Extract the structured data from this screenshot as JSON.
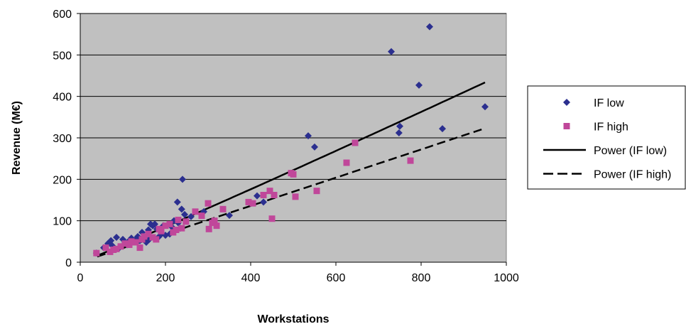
{
  "chart_data": {
    "type": "scatter",
    "title": "",
    "xlabel": "Workstations",
    "ylabel": "Revenue (M€)",
    "xlim": [
      0,
      1000
    ],
    "ylim": [
      0,
      600
    ],
    "xticks": [
      "0",
      "200",
      "400",
      "600",
      "800",
      "1000"
    ],
    "yticks": [
      "0",
      "100",
      "200",
      "300",
      "400",
      "500",
      "600"
    ],
    "xtick_values": [
      0,
      200,
      400,
      600,
      800,
      1000
    ],
    "ytick_values": [
      0,
      100,
      200,
      300,
      400,
      500,
      600
    ],
    "grid": "horizontal",
    "plot_background": "#c0c0c0",
    "legend_position": "right",
    "series": [
      {
        "name": "IF low",
        "kind": "points",
        "marker": "diamond",
        "color": "#2b2f8f",
        "x": [
          38,
          55,
          65,
          72,
          75,
          85,
          92,
          100,
          105,
          110,
          115,
          120,
          125,
          130,
          135,
          140,
          145,
          150,
          155,
          160,
          162,
          165,
          170,
          175,
          180,
          185,
          190,
          195,
          200,
          210,
          215,
          220,
          228,
          230,
          235,
          238,
          240,
          245,
          260,
          290,
          350,
          415,
          430,
          535,
          550,
          730,
          748,
          750,
          795,
          820,
          850,
          950
        ],
        "y": [
          22,
          35,
          45,
          52,
          40,
          60,
          35,
          55,
          48,
          42,
          52,
          58,
          50,
          55,
          62,
          52,
          72,
          58,
          48,
          78,
          55,
          92,
          88,
          92,
          80,
          62,
          70,
          88,
          65,
          68,
          85,
          100,
          145,
          95,
          82,
          128,
          200,
          115,
          110,
          122,
          113,
          160,
          145,
          305,
          278,
          508,
          312,
          328,
          427,
          568,
          322,
          375
        ]
      },
      {
        "name": "IF high",
        "kind": "points",
        "marker": "square",
        "color": "#c0479a",
        "x": [
          38,
          60,
          70,
          78,
          85,
          95,
          105,
          115,
          120,
          130,
          140,
          145,
          150,
          160,
          170,
          178,
          185,
          190,
          200,
          210,
          218,
          225,
          230,
          238,
          248,
          270,
          285,
          300,
          302,
          310,
          315,
          320,
          335,
          395,
          405,
          430,
          445,
          450,
          455,
          495,
          500,
          505,
          555,
          625,
          645,
          775
        ],
        "y": [
          22,
          35,
          25,
          30,
          32,
          38,
          45,
          42,
          50,
          48,
          35,
          55,
          62,
          68,
          60,
          55,
          80,
          75,
          88,
          92,
          72,
          78,
          102,
          82,
          98,
          122,
          112,
          142,
          80,
          95,
          100,
          88,
          128,
          145,
          142,
          162,
          172,
          105,
          162,
          215,
          212,
          158,
          172,
          240,
          288,
          245
        ]
      },
      {
        "name": "Power (IF low)",
        "kind": "trend",
        "dash": "solid",
        "color": "#000000",
        "coefficient": 0.34,
        "exponent": 1.043,
        "x_range": [
          40,
          950
        ]
      },
      {
        "name": "Power (IF high)",
        "kind": "trend",
        "dash": "dashed",
        "color": "#000000",
        "coefficient": 0.34,
        "exponent": 1.0,
        "x_range": [
          40,
          950
        ]
      }
    ]
  }
}
